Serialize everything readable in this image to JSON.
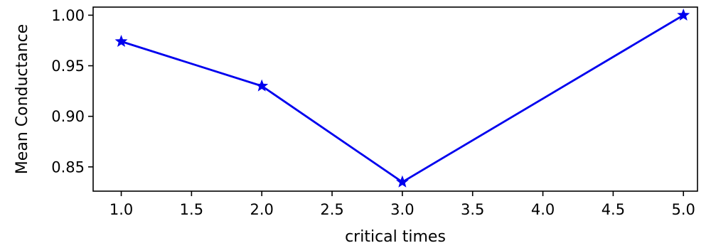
{
  "chart_data": {
    "type": "line",
    "title": "",
    "xlabel": "critical times",
    "ylabel": "Mean Conductance",
    "x": [
      1.0,
      2.0,
      3.0,
      4.0,
      5.0
    ],
    "series": [
      {
        "values": [
          0.974,
          0.93,
          0.835,
          null,
          1.0
        ],
        "color": "#0000ee",
        "marker": "star",
        "line_style": "solid"
      }
    ],
    "xlim": [
      0.8,
      5.1
    ],
    "ylim": [
      0.826,
      1.008
    ],
    "xticks": [
      1.0,
      1.5,
      2.0,
      2.5,
      3.0,
      3.5,
      4.0,
      4.5,
      5.0
    ],
    "xtick_labels": [
      "1.0",
      "1.5",
      "2.0",
      "2.5",
      "3.0",
      "3.5",
      "4.0",
      "4.5",
      "5.0"
    ],
    "yticks": [
      0.85,
      0.9,
      0.95,
      1.0
    ],
    "ytick_labels": [
      "0.85",
      "0.90",
      "0.95",
      "1.00"
    ],
    "grid": false,
    "legend": "none"
  }
}
